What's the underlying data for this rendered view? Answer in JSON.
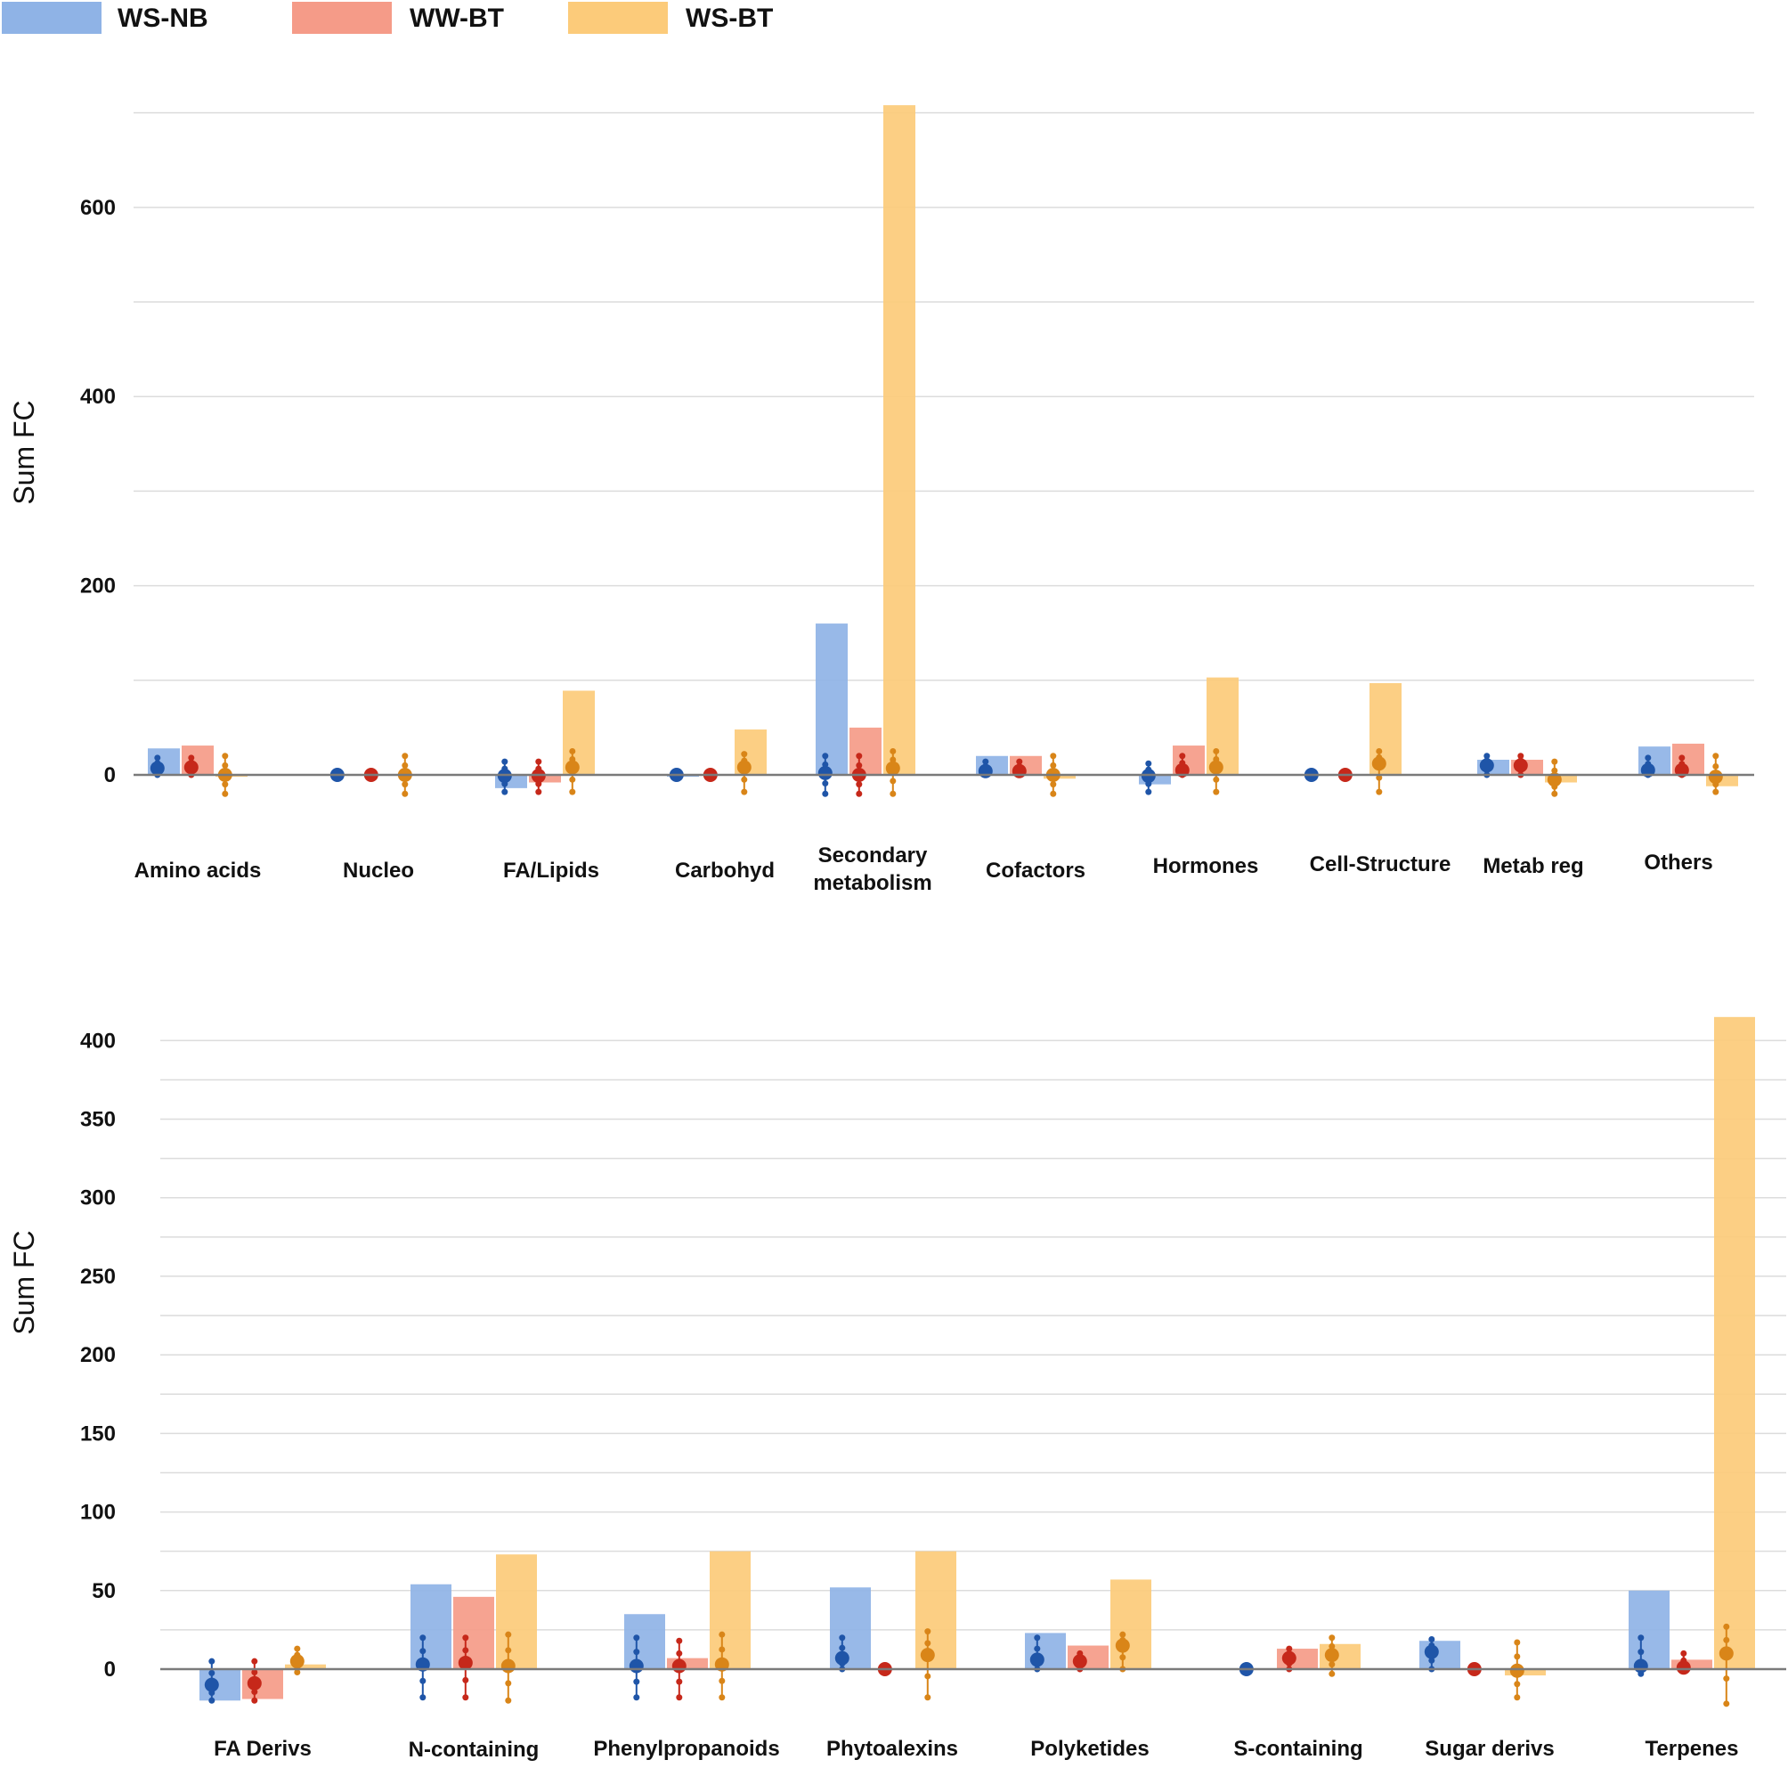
{
  "legend": [
    {
      "name": "WS-NB",
      "bar_color": "#8fb3e6",
      "dot_color": "#1f55a8"
    },
    {
      "name": "WW-BT",
      "bar_color": "#f59b88",
      "dot_color": "#c6281a"
    },
    {
      "name": "WS-BT",
      "bar_color": "#fccb7a",
      "dot_color": "#d98518"
    }
  ],
  "chart_data": [
    {
      "type": "bar",
      "ylabel": "Sum FC",
      "ylim": [
        -20,
        710
      ],
      "yticks": [
        0,
        200,
        400,
        600
      ],
      "gridline_step": 100,
      "grid": true,
      "legend_position": "top-left",
      "categories": [
        "Amino acids",
        "Nucleo",
        "FA/Lipids",
        "Carbohyd",
        "Secondary metabolism",
        "Cofactors",
        "Hormones",
        "Cell-Structure",
        "Metab reg",
        "Others"
      ],
      "series": [
        {
          "name": "WS-NB",
          "values": [
            28,
            0,
            -14,
            -2,
            160,
            20,
            -10,
            -1,
            16,
            30
          ]
        },
        {
          "name": "WW-BT",
          "values": [
            31,
            0,
            -8,
            0,
            50,
            20,
            31,
            0,
            16,
            33
          ]
        },
        {
          "name": "WS-BT",
          "values": [
            -2,
            0,
            89,
            48,
            708,
            -4,
            103,
            97,
            -8,
            -12
          ]
        }
      ],
      "points": [
        {
          "mean": [
            7,
            8,
            0
          ],
          "low": [
            0,
            0,
            -20
          ],
          "high": [
            18,
            18,
            20
          ]
        },
        {
          "mean": [
            0,
            0,
            0
          ],
          "low": [
            0,
            0,
            -20
          ],
          "high": [
            0,
            0,
            20
          ]
        },
        {
          "mean": [
            -1,
            -1,
            8
          ],
          "low": [
            -18,
            -18,
            -18
          ],
          "high": [
            14,
            14,
            25
          ]
        },
        {
          "mean": [
            0,
            0,
            8
          ],
          "low": [
            0,
            0,
            -18
          ],
          "high": [
            0,
            0,
            22
          ]
        },
        {
          "mean": [
            2,
            0,
            7
          ],
          "low": [
            -20,
            -20,
            -20
          ],
          "high": [
            20,
            20,
            25
          ]
        },
        {
          "mean": [
            4,
            4,
            0
          ],
          "low": [
            0,
            0,
            -20
          ],
          "high": [
            14,
            14,
            20
          ]
        },
        {
          "mean": [
            -1,
            5,
            8
          ],
          "low": [
            -18,
            0,
            -18
          ],
          "high": [
            12,
            20,
            25
          ]
        },
        {
          "mean": [
            0,
            0,
            12
          ],
          "low": [
            0,
            0,
            -18
          ],
          "high": [
            0,
            0,
            25
          ]
        },
        {
          "mean": [
            10,
            10,
            -5
          ],
          "low": [
            0,
            0,
            -20
          ],
          "high": [
            20,
            20,
            14
          ]
        },
        {
          "mean": [
            5,
            5,
            -2
          ],
          "low": [
            0,
            0,
            -18
          ],
          "high": [
            18,
            18,
            20
          ]
        }
      ]
    },
    {
      "type": "bar",
      "ylabel": "Sum FC",
      "ylim": [
        -25,
        420
      ],
      "yticks": [
        0,
        50,
        100,
        150,
        200,
        250,
        300,
        350,
        400
      ],
      "gridline_step": 25,
      "grid": true,
      "categories": [
        "FA Derivs",
        "N-containing",
        "Phenylpropanoids",
        "Phytoalexins",
        "Polyketides",
        "S-containing",
        "Sugar derivs",
        "Terpenes"
      ],
      "series": [
        {
          "name": "WS-NB",
          "values": [
            -20,
            54,
            35,
            52,
            23,
            0,
            18,
            50
          ]
        },
        {
          "name": "WW-BT",
          "values": [
            -19,
            46,
            7,
            0,
            15,
            13,
            0,
            6
          ]
        },
        {
          "name": "WS-BT",
          "values": [
            3,
            73,
            75,
            75,
            57,
            16,
            -4,
            415
          ]
        }
      ],
      "points": [
        {
          "mean": [
            -10,
            -9,
            5
          ],
          "low": [
            -20,
            -20,
            -2
          ],
          "high": [
            5,
            5,
            13
          ]
        },
        {
          "mean": [
            3,
            4,
            2
          ],
          "low": [
            -18,
            -18,
            -20
          ],
          "high": [
            20,
            20,
            22
          ]
        },
        {
          "mean": [
            2,
            2,
            3
          ],
          "low": [
            -18,
            -18,
            -18
          ],
          "high": [
            20,
            18,
            22
          ]
        },
        {
          "mean": [
            7,
            0,
            9
          ],
          "low": [
            0,
            0,
            -18
          ],
          "high": [
            20,
            0,
            24
          ]
        },
        {
          "mean": [
            6,
            5,
            15
          ],
          "low": [
            0,
            0,
            0
          ],
          "high": [
            20,
            10,
            22
          ]
        },
        {
          "mean": [
            0,
            7,
            9
          ],
          "low": [
            0,
            0,
            -3
          ],
          "high": [
            0,
            13,
            20
          ]
        },
        {
          "mean": [
            11,
            0,
            -1
          ],
          "low": [
            0,
            0,
            -18
          ],
          "high": [
            19,
            0,
            17
          ]
        },
        {
          "mean": [
            2,
            1,
            10
          ],
          "low": [
            -3,
            0,
            -22
          ],
          "high": [
            20,
            10,
            27
          ]
        }
      ]
    }
  ]
}
